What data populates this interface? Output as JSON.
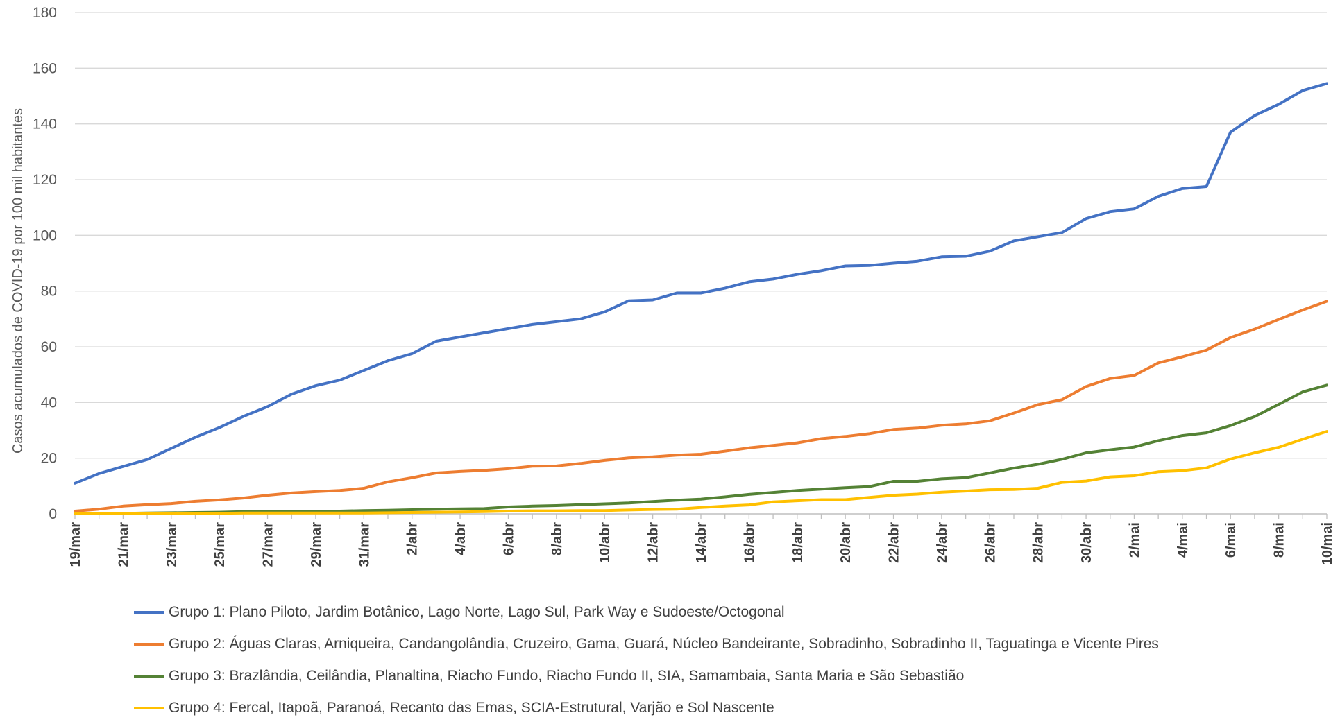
{
  "chart_data": {
    "type": "line",
    "title": "",
    "xlabel": "",
    "ylabel": "Casos acumulados de COVID-19 por 100 mil habitantes",
    "ylim": [
      0,
      180
    ],
    "yticks": [
      "0",
      "20",
      "40",
      "60",
      "80",
      "100",
      "120",
      "140",
      "160",
      "180"
    ],
    "grid": true,
    "legend_position": "bottom",
    "x": [
      "19/mar",
      "20/mar",
      "21/mar",
      "22/mar",
      "23/mar",
      "24/mar",
      "25/mar",
      "26/mar",
      "27/mar",
      "28/mar",
      "29/mar",
      "30/mar",
      "31/mar",
      "1/abr",
      "2/abr",
      "3/abr",
      "4/abr",
      "5/abr",
      "6/abr",
      "7/abr",
      "8/abr",
      "9/abr",
      "10/abr",
      "11/abr",
      "12/abr",
      "13/abr",
      "14/abr",
      "15/abr",
      "16/abr",
      "17/abr",
      "18/abr",
      "19/abr",
      "20/abr",
      "21/abr",
      "22/abr",
      "23/abr",
      "24/abr",
      "25/abr",
      "26/abr",
      "27/abr",
      "28/abr",
      "29/abr",
      "30/abr",
      "1/mai",
      "2/mai",
      "3/mai",
      "4/mai",
      "5/mai",
      "6/mai",
      "7/mai",
      "8/mai",
      "9/mai",
      "10/mai"
    ],
    "xtick_labels": [
      "19/mar",
      "21/mar",
      "23/mar",
      "25/mar",
      "27/mar",
      "29/mar",
      "31/mar",
      "2/abr",
      "4/abr",
      "6/abr",
      "8/abr",
      "10/abr",
      "12/abr",
      "14/abr",
      "16/abr",
      "18/abr",
      "20/abr",
      "22/abr",
      "24/abr",
      "26/abr",
      "28/abr",
      "30/abr",
      "2/mai",
      "4/mai",
      "6/mai",
      "8/mai",
      "10/mai"
    ],
    "series": [
      {
        "name": "Grupo 1: Plano Piloto, Jardim Botânico, Lago Norte, Lago Sul, Park Way e Sudoeste/Octogonal",
        "color": "#4472C4",
        "values": [
          11,
          14.5,
          17,
          19.5,
          23.5,
          27.5,
          31,
          35,
          38.5,
          43,
          46,
          48,
          51.5,
          55,
          57.5,
          62,
          63.5,
          65,
          66.5,
          68,
          69,
          70,
          72.5,
          76.5,
          76.8,
          79.3,
          79.3,
          81,
          83.3,
          84.3,
          86,
          87.3,
          89,
          89.2,
          90,
          90.7,
          92.3,
          92.5,
          94.3,
          98,
          99.5,
          101,
          106,
          108.5,
          109.5,
          114,
          116.8,
          117.5,
          137,
          143,
          147,
          152,
          154.5
        ]
      },
      {
        "name": "Grupo 2: Águas Claras, Arniqueira, Candangolândia, Cruzeiro, Gama, Guará, Núcleo Bandeirante, Sobradinho, Sobradinho II, Taguatinga e Vicente Pires",
        "color": "#ED7D31",
        "values": [
          1,
          1.7,
          2.8,
          3.3,
          3.7,
          4.5,
          5,
          5.7,
          6.7,
          7.5,
          8,
          8.4,
          9.2,
          11.5,
          13,
          14.7,
          15.2,
          15.6,
          16.2,
          17.1,
          17.2,
          18.1,
          19.2,
          20.1,
          20.5,
          21.1,
          21.4,
          22.5,
          23.7,
          24.6,
          25.5,
          27,
          27.8,
          28.8,
          30.3,
          30.8,
          31.8,
          32.3,
          33.4,
          36.2,
          39.2,
          41,
          45.7,
          48.6,
          49.7,
          54.2,
          56.4,
          58.8,
          63.3,
          66.3,
          69.8,
          73.2,
          76.3
        ]
      },
      {
        "name": "Grupo 3: Brazlândia, Ceilândia, Planaltina, Riacho Fundo, Riacho Fundo II, SIA, Samambaia, Santa Maria e São Sebastião",
        "color": "#548235",
        "values": [
          0,
          0.1,
          0.2,
          0.3,
          0.4,
          0.5,
          0.6,
          0.8,
          0.9,
          0.9,
          0.9,
          1.0,
          1.2,
          1.3,
          1.5,
          1.7,
          1.8,
          1.9,
          2.5,
          2.8,
          3.0,
          3.3,
          3.6,
          3.9,
          4.4,
          4.9,
          5.3,
          6.1,
          7.0,
          7.7,
          8.4,
          8.9,
          9.4,
          9.8,
          11.7,
          11.7,
          12.6,
          13.0,
          14.7,
          16.4,
          17.8,
          19.6,
          21.9,
          23.0,
          24.0,
          26.3,
          28.1,
          29.1,
          31.7,
          34.9,
          39.3,
          43.8,
          46.2
        ]
      },
      {
        "name": "Grupo 4: Fercal, Itapoã, Paranoá, Recanto das Emas, SCIA-Estrutural, Varjão e Sol Nascente",
        "color": "#FFC000",
        "values": [
          0,
          0,
          0.1,
          0.1,
          0.1,
          0.2,
          0.2,
          0.3,
          0.3,
          0.3,
          0.3,
          0.3,
          0.3,
          0.4,
          0.5,
          0.6,
          0.7,
          0.8,
          1.0,
          1.1,
          1.1,
          1.2,
          1.2,
          1.4,
          1.6,
          1.7,
          2.3,
          2.8,
          3.2,
          4.3,
          4.7,
          5.1,
          5.1,
          5.9,
          6.7,
          7.1,
          7.8,
          8.2,
          8.7,
          8.8,
          9.2,
          11.3,
          11.8,
          13.3,
          13.7,
          15.1,
          15.5,
          16.5,
          19.7,
          21.9,
          23.9,
          26.8,
          29.6
        ]
      }
    ]
  }
}
